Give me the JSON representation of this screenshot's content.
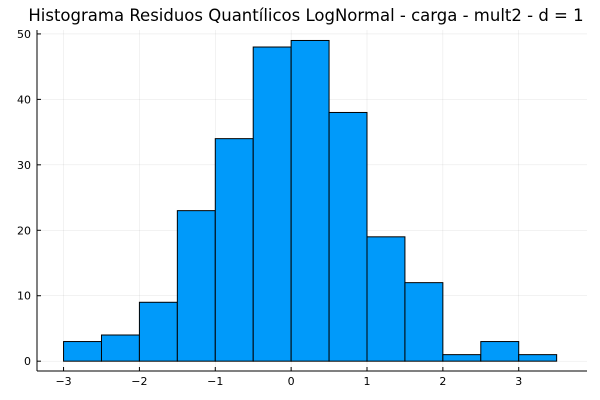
{
  "chart_data": {
    "type": "bar",
    "title": "Histograma Residuos Quantílicos LogNormal - carga - mult2 - d = 1",
    "xlabel": "",
    "ylabel": "",
    "bin_edges": [
      -3.0,
      -2.5,
      -2.0,
      -1.5,
      -1.0,
      -0.5,
      0.0,
      0.5,
      1.0,
      1.5,
      2.0,
      2.5,
      3.0,
      3.5
    ],
    "values": [
      3,
      4,
      9,
      23,
      34,
      48,
      49,
      38,
      19,
      12,
      1,
      3,
      1
    ],
    "xlim": [
      -3.35,
      3.9
    ],
    "ylim": [
      -1.5,
      50.6
    ],
    "x_ticks": [
      -3,
      -2,
      -1,
      0,
      1,
      2,
      3
    ],
    "x_tick_labels": [
      "−3",
      "−2",
      "−1",
      "0",
      "1",
      "2",
      "3"
    ],
    "y_ticks": [
      0,
      10,
      20,
      30,
      40,
      50
    ],
    "y_tick_labels": [
      "0",
      "10",
      "20",
      "30",
      "40",
      "50"
    ],
    "grid": true,
    "legend": "none",
    "bar_color": "#009AFA",
    "bar_edge_color": "#000000"
  }
}
